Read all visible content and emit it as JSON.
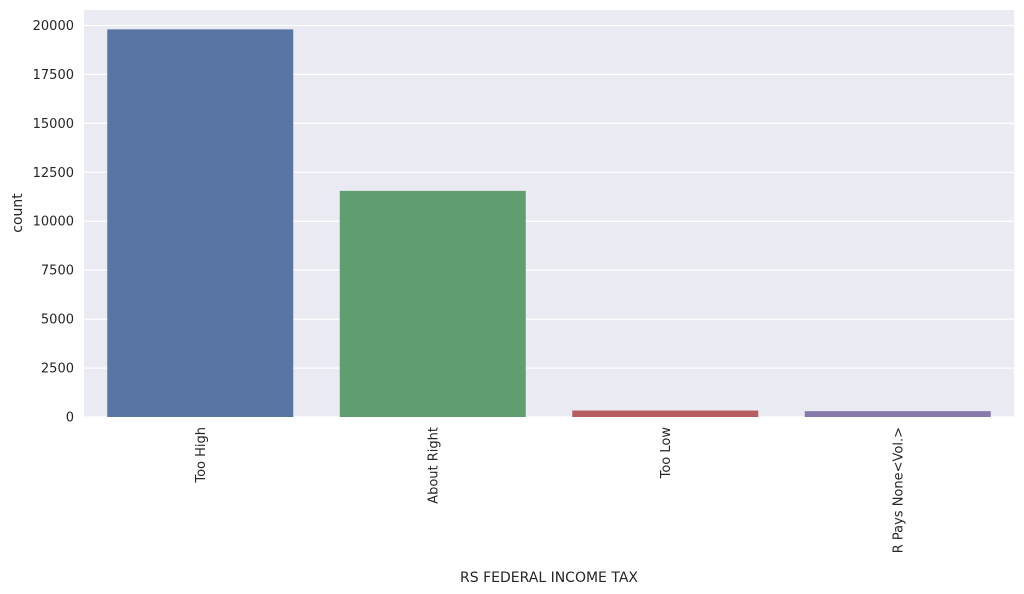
{
  "chart_data": {
    "type": "bar",
    "xlabel": "RS FEDERAL INCOME TAX",
    "ylabel": "count",
    "categories": [
      "Too High",
      "About Right",
      "Too Low",
      "R Pays None<Vol.>"
    ],
    "values": [
      19800,
      11550,
      330,
      300
    ],
    "ylim": [
      0,
      20790
    ],
    "yticks": [
      0,
      2500,
      5000,
      7500,
      10000,
      12500,
      15000,
      17500,
      20000
    ],
    "grid": true,
    "legend": "none",
    "colors": [
      "#5975a4",
      "#5f9e6e",
      "#b55d60",
      "#857aab"
    ],
    "background_color": "#eaeaf2",
    "grid_color": "#ffffff"
  }
}
